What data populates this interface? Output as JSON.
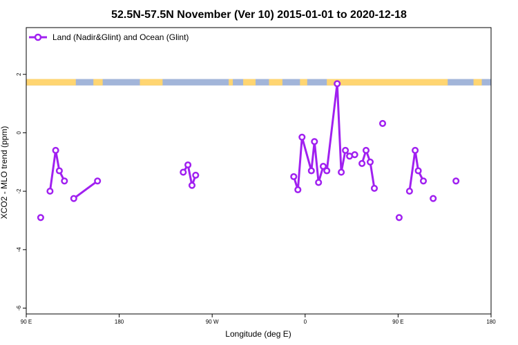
{
  "chart_data": {
    "type": "line",
    "title": "52.5N-57.5N November (Ver 10)   2015-01-01 to 2020-12-18",
    "xlabel": "Longitude (deg E)",
    "ylabel": "XCO2 - MLO trend (ppm)",
    "x_ticks": [
      {
        "value": 90,
        "label": "90 E"
      },
      {
        "value": 180,
        "label": "180"
      },
      {
        "value": 270,
        "label": "90 W"
      },
      {
        "value": 360,
        "label": "0"
      },
      {
        "value": 450,
        "label": "90 E"
      },
      {
        "value": 540,
        "label": "180"
      }
    ],
    "y_ticks": [
      {
        "value": 2,
        "label": "2"
      },
      {
        "value": 0,
        "label": "0"
      },
      {
        "value": -2,
        "label": "-2"
      },
      {
        "value": -4,
        "label": "-4"
      },
      {
        "value": -6,
        "label": "-6"
      }
    ],
    "xlim": [
      90,
      540
    ],
    "ylim": [
      -6.2,
      3.6
    ],
    "grid": false,
    "legend_position": "top-left",
    "colors": {
      "series": "#a020f0",
      "ocean": "#a2b5d9",
      "land": "#ffd571"
    },
    "series": [
      {
        "name": "Land (Nadir&Glint) and Ocean (Glint)",
        "segments": [
          [
            [
              104,
              -2.9
            ]
          ],
          [
            [
              113,
              -2.0
            ],
            [
              118.5,
              -0.6
            ],
            [
              122,
              -1.3
            ],
            [
              127,
              -1.65
            ]
          ],
          [
            [
              136,
              -2.25
            ],
            [
              159,
              -1.65
            ]
          ],
          [
            [
              242,
              -1.35
            ],
            [
              246.5,
              -1.1
            ],
            [
              250.5,
              -1.8
            ],
            [
              254,
              -1.45
            ]
          ],
          [
            [
              349,
              -1.5
            ],
            [
              353,
              -1.95
            ],
            [
              357,
              -0.15
            ],
            [
              366,
              -1.3
            ],
            [
              369,
              -0.3
            ],
            [
              373,
              -1.7
            ],
            [
              377.5,
              -1.15
            ],
            [
              381,
              -1.3
            ],
            [
              391,
              1.68
            ],
            [
              395,
              -1.35
            ],
            [
              399,
              -0.6
            ],
            [
              403,
              -0.8
            ],
            [
              408,
              -0.75
            ]
          ],
          [
            [
              415,
              -1.05
            ],
            [
              419,
              -0.6
            ],
            [
              423,
              -1.0
            ],
            [
              427,
              -1.9
            ]
          ],
          [
            [
              435,
              0.32
            ]
          ],
          [
            [
              451,
              -2.9
            ]
          ],
          [
            [
              461,
              -2.0
            ],
            [
              466.5,
              -0.6
            ],
            [
              469.5,
              -1.3
            ],
            [
              474.5,
              -1.65
            ]
          ],
          [
            [
              484,
              -2.25
            ]
          ],
          [
            [
              506,
              -1.65
            ]
          ]
        ]
      }
    ],
    "land_ocean_strip": {
      "y_range": [
        1.62,
        1.84
      ],
      "land_intervals": [
        [
          90,
          138
        ],
        [
          155,
          164
        ],
        [
          200,
          222
        ],
        [
          286,
          290
        ],
        [
          300,
          312
        ],
        [
          325,
          338
        ],
        [
          355,
          362
        ],
        [
          381,
          498
        ],
        [
          523,
          531
        ]
      ]
    }
  }
}
